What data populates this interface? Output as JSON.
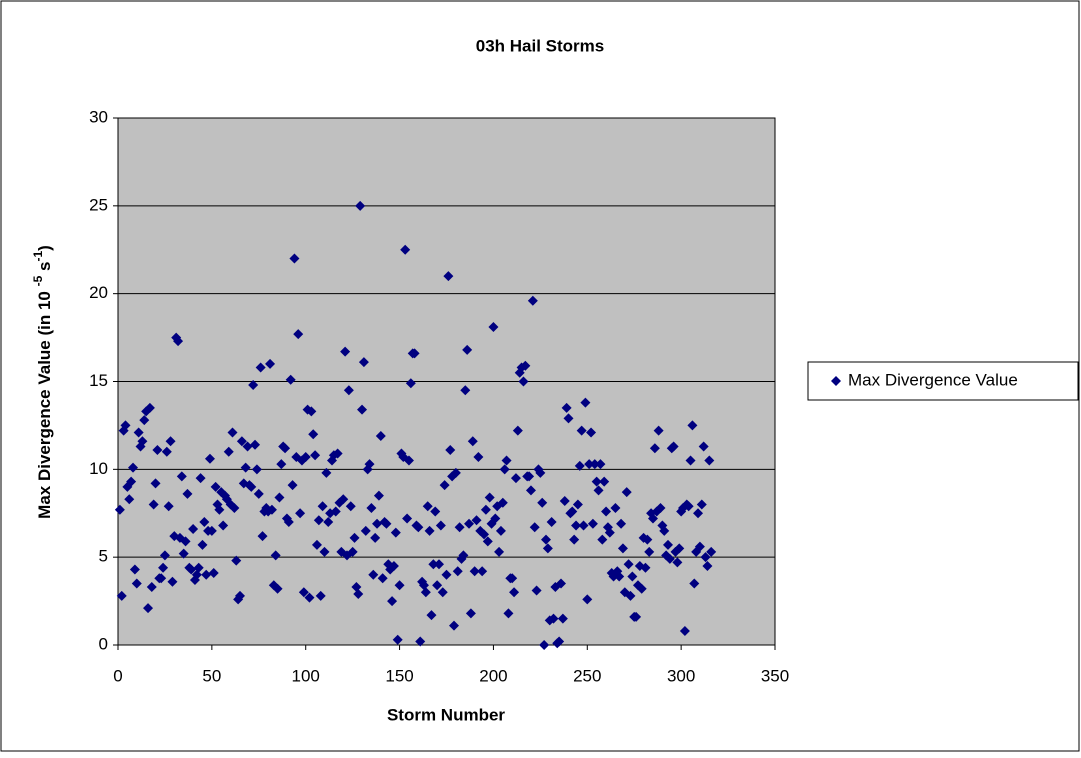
{
  "chart_data": {
    "type": "scatter",
    "title": "03h Hail Storms",
    "x_label": "Storm Number",
    "y_label": [
      "Max Divergence Value (in 10 ",
      "-5",
      " s",
      "-1",
      ")"
    ],
    "xlim": [
      0,
      350
    ],
    "xticks": [
      0,
      50,
      100,
      150,
      200,
      250,
      300,
      350
    ],
    "ylim": [
      0,
      30
    ],
    "yticks": [
      0,
      5,
      10,
      15,
      20,
      25,
      30
    ],
    "grid": true,
    "legend": "right",
    "series": [
      {
        "name": "Max Divergence Value",
        "color": "#000080",
        "x": [
          1,
          2,
          3,
          4,
          5,
          6,
          7,
          8,
          9,
          10,
          11,
          12,
          13,
          14,
          15,
          16,
          17,
          18,
          19,
          20,
          21,
          22,
          23,
          24,
          25,
          26,
          27,
          28,
          29,
          30,
          31,
          32,
          33,
          34,
          35,
          36,
          37,
          38,
          39,
          40,
          41,
          42,
          43,
          44,
          45,
          46,
          47,
          48,
          49,
          50,
          51,
          52,
          53,
          54,
          55,
          56,
          57,
          58,
          59,
          60,
          61,
          62,
          63,
          64,
          65,
          66,
          67,
          68,
          69,
          70,
          71,
          72,
          73,
          74,
          75,
          76,
          77,
          78,
          79,
          80,
          81,
          82,
          83,
          84,
          85,
          86,
          87,
          88,
          89,
          90,
          91,
          92,
          93,
          94,
          95,
          96,
          97,
          98,
          99,
          100,
          101,
          102,
          103,
          104,
          105,
          106,
          107,
          108,
          109,
          110,
          111,
          112,
          113,
          114,
          115,
          116,
          117,
          118,
          119,
          120,
          121,
          122,
          123,
          124,
          125,
          126,
          127,
          128,
          129,
          130,
          131,
          132,
          133,
          134,
          135,
          136,
          137,
          138,
          139,
          140,
          141,
          142,
          143,
          144,
          145,
          146,
          147,
          148,
          149,
          150,
          151,
          152,
          153,
          154,
          155,
          156,
          157,
          158,
          159,
          160,
          161,
          162,
          163,
          164,
          165,
          166,
          167,
          168,
          169,
          170,
          171,
          172,
          173,
          174,
          175,
          176,
          177,
          178,
          179,
          180,
          181,
          182,
          183,
          184,
          185,
          186,
          187,
          188,
          189,
          190,
          191,
          192,
          193,
          194,
          195,
          196,
          197,
          198,
          199,
          200,
          201,
          202,
          203,
          204,
          205,
          206,
          207,
          208,
          209,
          210,
          211,
          212,
          213,
          214,
          215,
          216,
          217,
          218,
          219,
          220,
          221,
          222,
          223,
          224,
          225,
          226,
          227,
          228,
          229,
          230,
          231,
          232,
          233,
          234,
          235,
          236,
          237,
          238,
          239,
          240,
          241,
          242,
          243,
          244,
          245,
          246,
          247,
          248,
          249,
          250,
          251,
          252,
          253,
          254,
          255,
          256,
          257,
          258,
          259,
          260,
          261,
          262,
          263,
          264,
          265,
          266,
          267,
          268,
          269,
          270,
          271,
          272,
          273,
          274,
          275,
          276,
          277,
          278,
          279,
          280,
          281,
          282,
          283,
          284,
          285,
          286,
          287,
          288,
          289,
          290,
          291,
          292,
          293,
          294,
          295,
          296,
          297,
          298,
          299,
          300,
          301,
          302,
          303,
          304,
          305,
          306,
          307,
          308,
          309,
          310,
          311,
          312,
          313,
          314,
          315,
          316
        ],
        "values": [
          7.7,
          2.8,
          12.2,
          12.5,
          9,
          8.3,
          9.3,
          10.1,
          4.3,
          3.5,
          12.1,
          11.3,
          11.6,
          12.8,
          13.3,
          2.1,
          13.5,
          3.3,
          8,
          9.2,
          11.1,
          3.8,
          3.8,
          4.4,
          5.1,
          11,
          7.9,
          11.6,
          3.6,
          6.2,
          17.5,
          17.3,
          6.1,
          9.6,
          5.2,
          5.9,
          8.6,
          4.4,
          4.3,
          6.6,
          3.7,
          4,
          4.4,
          9.5,
          5.7,
          7,
          4,
          6.5,
          10.6,
          6.5,
          4.1,
          9,
          8,
          7.7,
          8.7,
          6.8,
          8.5,
          8.3,
          11,
          8,
          12.1,
          7.8,
          4.8,
          2.6,
          2.8,
          11.6,
          9.2,
          10.1,
          11.3,
          9.1,
          9,
          14.8,
          11.4,
          10,
          8.6,
          15.8,
          6.2,
          7.6,
          7.8,
          7.6,
          16,
          7.7,
          3.4,
          5.1,
          3.2,
          8.4,
          10.3,
          11.3,
          11.2,
          7.2,
          7,
          15.1,
          9.1,
          22,
          10.7,
          17.7,
          7.5,
          10.5,
          3,
          10.7,
          13.4,
          2.7,
          13.3,
          12,
          10.8,
          5.7,
          7.1,
          2.8,
          7.9,
          5.3,
          9.8,
          7,
          7.5,
          10.5,
          10.8,
          7.6,
          10.9,
          8.1,
          5.3,
          8.3,
          16.7,
          5.1,
          14.5,
          7.9,
          5.3,
          6.1,
          3.3,
          2.9,
          25,
          13.4,
          16.1,
          6.5,
          10,
          10.3,
          7.8,
          4,
          6.1,
          6.9,
          8.5,
          11.9,
          3.8,
          7,
          6.9,
          4.6,
          4.3,
          2.5,
          4.5,
          6.4,
          0.3,
          3.4,
          10.9,
          10.7,
          22.5,
          7.2,
          10.5,
          14.9,
          16.6,
          16.6,
          6.8,
          6.7,
          0.2,
          3.6,
          3.4,
          3,
          7.9,
          6.5,
          1.7,
          4.6,
          7.6,
          3.4,
          4.6,
          6.8,
          3,
          9.1,
          4,
          21,
          11.1,
          9.6,
          1.1,
          9.8,
          4.2,
          6.7,
          4.9,
          5.1,
          14.5,
          16.8,
          6.9,
          1.8,
          11.6,
          4.2,
          7.1,
          10.7,
          6.5,
          4.2,
          6.3,
          7.7,
          5.9,
          8.4,
          6.9,
          18.1,
          7.2,
          7.9,
          5.3,
          6.5,
          8.1,
          10,
          10.5,
          1.8,
          3.8,
          3.8,
          3,
          9.5,
          12.2,
          15.5,
          15.8,
          15,
          15.9,
          9.6,
          9.6,
          8.8,
          19.6,
          6.7,
          3.1,
          10,
          9.8,
          8.1,
          0,
          6,
          5.5,
          1.4,
          7,
          1.5,
          3.3,
          0.1,
          0.2,
          3.5,
          1.5,
          8.2,
          13.5,
          12.9,
          7.5,
          7.6,
          6,
          6.8,
          8,
          10.2,
          12.2,
          6.8,
          13.8,
          2.6,
          10.3,
          12.1,
          6.9,
          10.3,
          9.3,
          8.8,
          10.3,
          6,
          9.3,
          7.6,
          6.7,
          6.4,
          4.1,
          3.9,
          7.8,
          4.2,
          3.9,
          6.9,
          5.5,
          3,
          8.7,
          4.6,
          2.8,
          3.9,
          1.6,
          1.6,
          3.4,
          4.5,
          3.2,
          6.1,
          4.4,
          6,
          5.3,
          7.5,
          7.2,
          11.2,
          7.6,
          12.2,
          7.8,
          6.8,
          6.5,
          5.1,
          5.7,
          4.9,
          11.2,
          11.3,
          5.3,
          4.7,
          5.5,
          7.6,
          7.8,
          0.8,
          8,
          7.9,
          10.5,
          12.5,
          3.5,
          5.3,
          7.5,
          5.6,
          8,
          11.3,
          5,
          4.5,
          10.5,
          5.3
        ]
      }
    ]
  }
}
